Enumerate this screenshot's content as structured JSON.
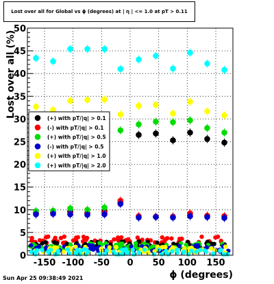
{
  "chart_data": {
    "type": "scatter",
    "title": "Lost over all for Global vs ϕ (degrees) at | η | <= 1.0 at pT > 0.11",
    "xlabel": "ϕ (degrees)",
    "ylabel": "Lost over all (%)",
    "xlim": [
      -180,
      180
    ],
    "ylim": [
      0,
      50
    ],
    "x_ticks": [
      -150,
      -100,
      -50,
      0,
      50,
      100,
      150
    ],
    "y_ticks": [
      0,
      5,
      10,
      15,
      20,
      25,
      30,
      35,
      40,
      45,
      50
    ],
    "grid": true,
    "legend_position": "middle-left",
    "series": [
      {
        "name": "(+) with pT/|q| > 0.1",
        "color": "#000000",
        "x": [
          -165,
          -135,
          -105,
          -75,
          -45,
          -17,
          15,
          45,
          75,
          105,
          135,
          165
        ],
        "y": [
          9.3,
          9.5,
          9.6,
          9.3,
          9.6,
          11.6,
          26.5,
          26.8,
          25.3,
          27.0,
          25.6,
          24.8
        ]
      },
      {
        "name": "(-) with pT/|q| > 0.1",
        "color": "#ff0000",
        "x": [
          -165,
          -135,
          -105,
          -75,
          -45,
          -17,
          15,
          45,
          75,
          105,
          135,
          165
        ],
        "y": [
          9.2,
          9.3,
          9.1,
          9.2,
          9.3,
          12.0,
          8.6,
          8.5,
          8.5,
          9.2,
          8.7,
          8.6
        ]
      },
      {
        "name": "(+) with pT/|q| > 0.5",
        "color": "#00dd00",
        "x": [
          -165,
          -135,
          -105,
          -75,
          -45,
          -17,
          15,
          45,
          75,
          105,
          135,
          165
        ],
        "y": [
          9.7,
          9.8,
          10.3,
          10.0,
          10.5,
          27.5,
          28.8,
          29.4,
          29.3,
          29.7,
          28.0,
          27.0
        ]
      },
      {
        "name": "(-) with pT/|q| > 0.5",
        "color": "#0000cc",
        "x": [
          -165,
          -135,
          -105,
          -75,
          -45,
          -17,
          15,
          45,
          75,
          105,
          135,
          165
        ],
        "y": [
          9.0,
          9.1,
          9.0,
          8.9,
          9.0,
          11.3,
          8.3,
          8.4,
          8.3,
          8.6,
          8.4,
          8.2
        ]
      },
      {
        "name": "(+) with pT/|q| > 1.0",
        "color": "#ffff00",
        "x": [
          -165,
          -135,
          -105,
          -75,
          -45,
          -17,
          15,
          45,
          75,
          105,
          135,
          165
        ],
        "y": [
          32.7,
          32.0,
          34.0,
          34.2,
          34.3,
          31.0,
          32.9,
          33.1,
          31.2,
          33.8,
          31.7,
          30.8
        ]
      },
      {
        "name": "(+) with pT/|q| > 2.0",
        "color": "#00ffff",
        "x": [
          -165,
          -135,
          -105,
          -75,
          -45,
          -17,
          15,
          45,
          75,
          105,
          135,
          165
        ],
        "y": [
          43.4,
          42.7,
          45.4,
          45.4,
          45.4,
          41.0,
          43.1,
          43.9,
          41.1,
          44.6,
          42.2,
          40.8
        ]
      }
    ],
    "low_band": {
      "description_colors": [
        "#ff0000",
        "#000000",
        "#00dd00",
        "#0000cc",
        "#ffff00",
        "#00ffff"
      ],
      "levels": [
        3.4,
        2.3,
        2.0,
        1.5,
        1.2,
        0.6
      ]
    }
  },
  "footer": {
    "timestamp": "Sun Apr 25 09:38:49 2021"
  }
}
